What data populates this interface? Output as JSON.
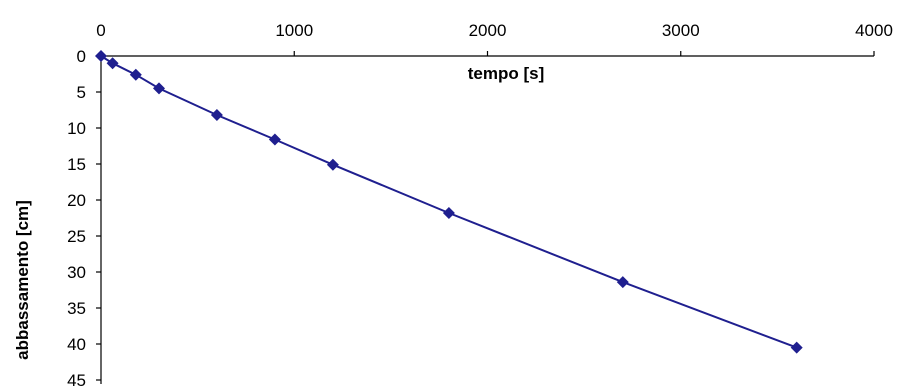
{
  "chart_data": {
    "type": "line",
    "title": "",
    "xlabel": "tempo [s]",
    "ylabel": "abbassamento [cm]",
    "xlim": [
      0,
      4000
    ],
    "ylim": [
      0,
      45
    ],
    "y_inverted": true,
    "x_axis_position": "top",
    "grid": false,
    "x_ticks": [
      0,
      1000,
      2000,
      3000,
      4000
    ],
    "y_ticks": [
      0,
      5,
      10,
      15,
      20,
      25,
      30,
      35,
      40,
      45
    ],
    "series": [
      {
        "marker": "diamond",
        "color": "#1f1f8f",
        "x": [
          0,
          60,
          180,
          300,
          600,
          900,
          1200,
          1800,
          2700,
          3600
        ],
        "y": [
          0,
          1,
          2.6,
          4.5,
          8.2,
          11.6,
          15.1,
          21.8,
          31.4,
          40.5
        ]
      }
    ]
  }
}
